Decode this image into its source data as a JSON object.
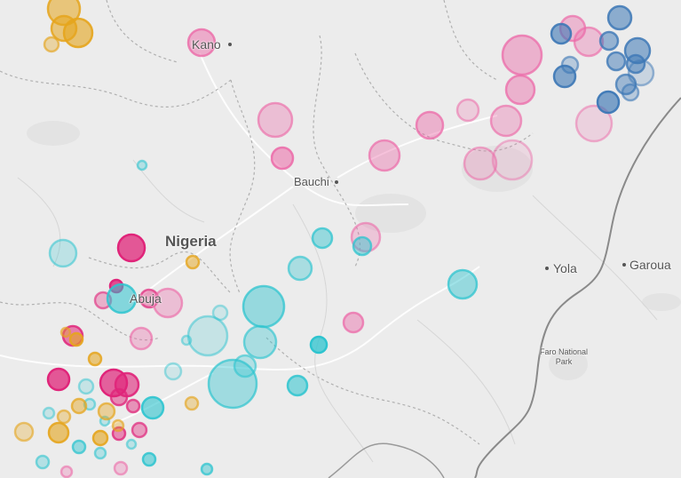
{
  "map": {
    "country_label": "Nigeria",
    "cities": {
      "kano": "Kano",
      "bauchi": "Bauchi",
      "abuja": "Abuja",
      "yola": "Yola",
      "garoua": "Garoua"
    },
    "park_label": "Faro National\nPark"
  },
  "colors": {
    "pink": "#ec6aa8",
    "magenta": "#e0257a",
    "cyan": "#2ec4cf",
    "blue": "#3d78b6",
    "orange": "#e5a51d",
    "border": "#8a8a8a",
    "road": "#ffffff",
    "land": "#ececec"
  }
}
